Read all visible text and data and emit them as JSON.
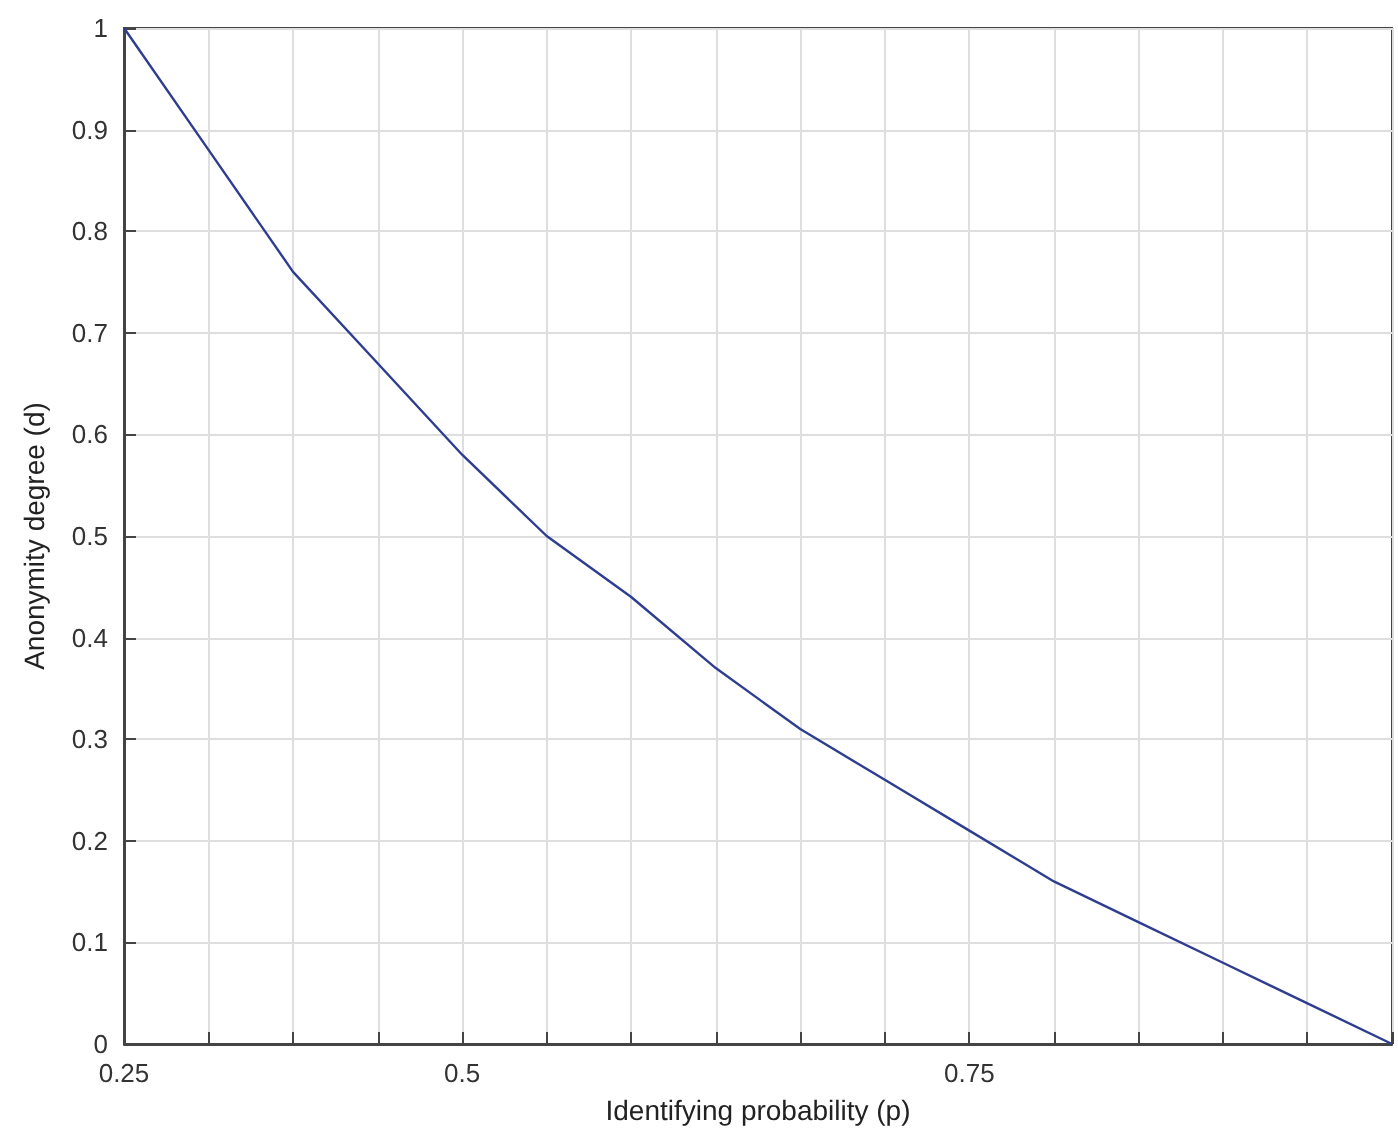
{
  "chart_data": {
    "type": "line",
    "xlabel": "Identifying probability (p)",
    "ylabel": "Anonymity degree (d)",
    "categories": [
      "0.25",
      null,
      null,
      null,
      "0.5",
      null,
      null,
      null,
      null,
      null,
      "0.75",
      null,
      null,
      null,
      null,
      null
    ],
    "series": [
      {
        "color": "#2e3d8f",
        "values": [
          1,
          0.88,
          0.76,
          0.67,
          0.58,
          0.5,
          0.44,
          0.37,
          0.31,
          0.26,
          0.21,
          0.16,
          0.12,
          0.08,
          0.04,
          0
        ]
      }
    ],
    "ylim": [
      0,
      1
    ],
    "yticks": [
      0,
      0.1,
      0.2,
      0.3,
      0.4,
      0.5,
      0.6,
      0.7,
      0.8,
      0.9,
      1
    ],
    "grid": true,
    "marker": "none",
    "line_style": "solid"
  }
}
